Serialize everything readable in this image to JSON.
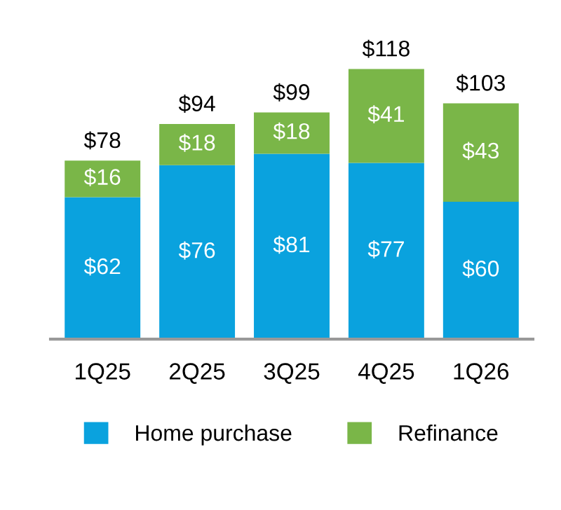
{
  "chart_data": {
    "type": "bar",
    "stacked": true,
    "categories": [
      "1Q25",
      "2Q25",
      "3Q25",
      "4Q25",
      "1Q26"
    ],
    "series": [
      {
        "name": "Home purchase",
        "color": "#0aa2de",
        "values": [
          62,
          76,
          81,
          77,
          60
        ],
        "value_labels": [
          "$62",
          "$76",
          "$81",
          "$77",
          "$60"
        ]
      },
      {
        "name": "Refinance",
        "color": "#7ab648",
        "values": [
          16,
          18,
          18,
          41,
          43
        ],
        "value_labels": [
          "$16",
          "$18",
          "$18",
          "$41",
          "$43"
        ]
      }
    ],
    "totals": [
      "$78",
      "$94",
      "$99",
      "$118",
      "$103"
    ],
    "legend": "bottom",
    "grid": false
  }
}
